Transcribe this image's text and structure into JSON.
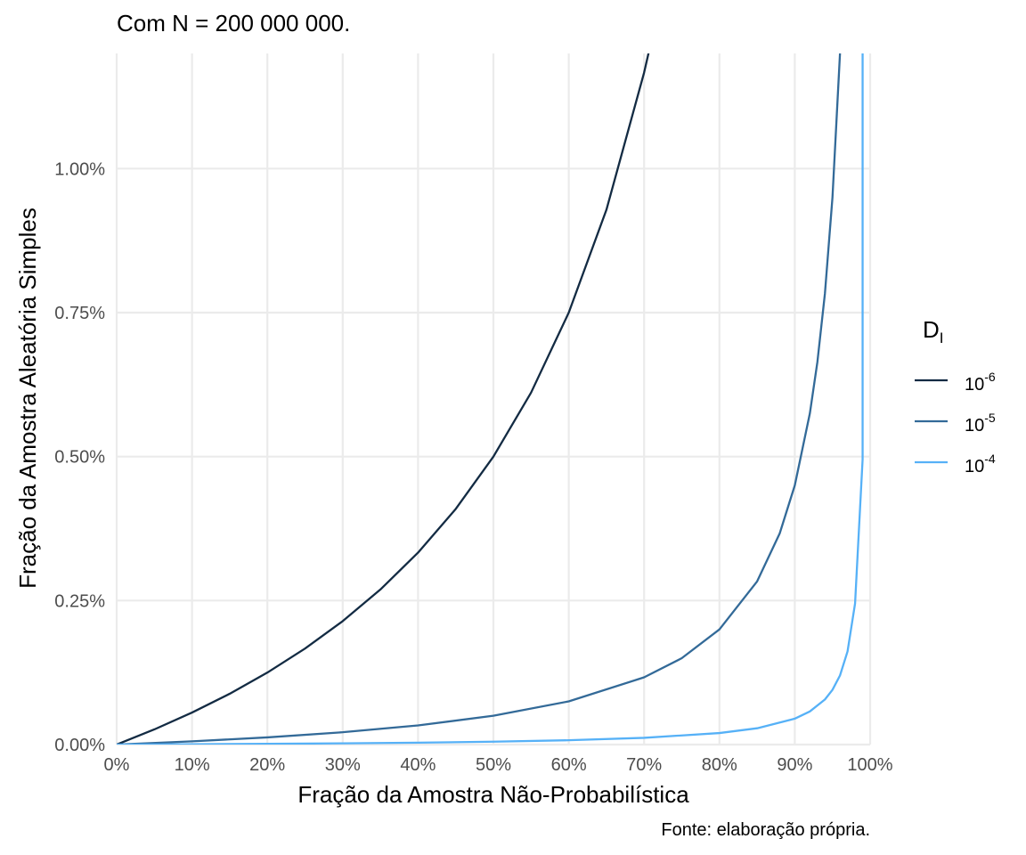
{
  "chart_data": {
    "type": "line",
    "title": "Com  N = 200 000 000.",
    "xlabel": "Fração da Amostra Não-Probabilística",
    "ylabel": "Fração da Amostra Aleatória Simples",
    "caption": "Fonte: elaboração própria.",
    "xlim": [
      0,
      1
    ],
    "ylim": [
      0,
      0.012
    ],
    "x_ticks": [
      0,
      0.1,
      0.2,
      0.3,
      0.4,
      0.5,
      0.6,
      0.7,
      0.8,
      0.9,
      1.0
    ],
    "x_tick_labels": [
      "0%",
      "10%",
      "20%",
      "30%",
      "40%",
      "50%",
      "60%",
      "70%",
      "80%",
      "90%",
      "100%"
    ],
    "y_ticks": [
      0,
      0.0025,
      0.005,
      0.0075,
      0.01
    ],
    "y_tick_labels": [
      "0.00%",
      "0.25%",
      "0.50%",
      "0.75%",
      "1.00%"
    ],
    "grid": true,
    "legend": {
      "title_main": "D",
      "title_sub": "I",
      "position": "right"
    },
    "series": [
      {
        "base": "10",
        "exponent": "-6",
        "color": "#132b43",
        "x": [
          0,
          0.05,
          0.1,
          0.15,
          0.2,
          0.25,
          0.3,
          0.35,
          0.4,
          0.45,
          0.5,
          0.55,
          0.6,
          0.65,
          0.7,
          0.71
        ],
        "y": [
          0,
          0.000263,
          0.000556,
          0.000882,
          0.00125,
          0.001667,
          0.002143,
          0.002692,
          0.003333,
          0.004091,
          0.005,
          0.006111,
          0.0075,
          0.009286,
          0.011667,
          0.012241
        ]
      },
      {
        "base": "10",
        "exponent": "-5",
        "color": "#336a98",
        "x": [
          0,
          0.1,
          0.2,
          0.3,
          0.4,
          0.5,
          0.6,
          0.7,
          0.75,
          0.8,
          0.85,
          0.88,
          0.9,
          0.92,
          0.93,
          0.94,
          0.95,
          0.96
        ],
        "y": [
          0,
          5.56e-05,
          0.000125,
          0.000214,
          0.000333,
          0.0005,
          0.00075,
          0.001167,
          0.0015,
          0.002,
          0.002833,
          0.003667,
          0.0045,
          0.00575,
          0.006643,
          0.007833,
          0.0095,
          0.012
        ]
      },
      {
        "base": "10",
        "exponent": "-4",
        "color": "#56b1f7",
        "x": [
          0,
          0.1,
          0.2,
          0.3,
          0.4,
          0.5,
          0.6,
          0.7,
          0.8,
          0.85,
          0.9,
          0.92,
          0.94,
          0.95,
          0.96,
          0.97,
          0.98,
          0.99,
          0.99
        ],
        "y": [
          0,
          5.6e-06,
          1.25e-05,
          2.14e-05,
          3.33e-05,
          5e-05,
          7.5e-05,
          0.000117,
          0.0002,
          0.000283,
          0.00045,
          0.000575,
          0.000783,
          0.00095,
          0.0012,
          0.001617,
          0.00245,
          0.00495,
          0.012
        ]
      }
    ]
  }
}
